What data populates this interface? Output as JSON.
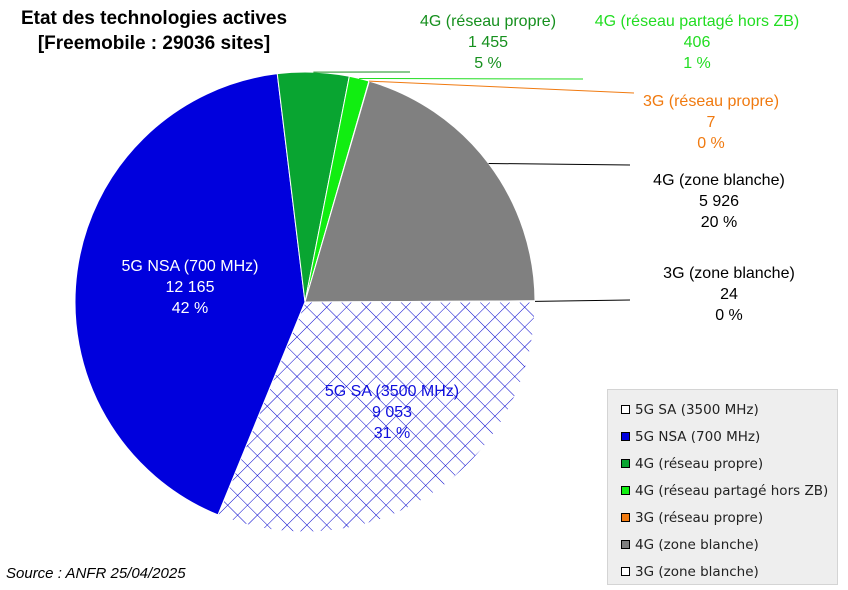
{
  "title_line1": "Etat des technologies actives",
  "title_line2": "[Freemobile : 29036 sites]",
  "source": "Source : ANFR 25/04/2025",
  "colors": {
    "5g_sa": "#ffffff",
    "5g_sa_hatch": "#0000cc",
    "5g_nsa": "#0000dd",
    "4g_propre": "#09a531",
    "4g_partage": "#11ee11",
    "3g_propre": "#f07a10",
    "4g_blanche": "#808080",
    "3g_blanche": "#ffffff"
  },
  "chart_data": {
    "type": "pie",
    "title": "Etat des technologies actives [Freemobile : 29036 sites]",
    "slices": [
      {
        "label": "5G SA (3500 MHz)",
        "value": 9053,
        "value_text": "9 053",
        "percent_text": "31 %",
        "color": "#ffffff",
        "hatch": true
      },
      {
        "label": "5G NSA (700 MHz)",
        "value": 12165,
        "value_text": "12 165",
        "percent_text": "42 %",
        "color": "#0000dd"
      },
      {
        "label": "4G (réseau propre)",
        "value": 1455,
        "value_text": "1 455",
        "percent_text": "5 %",
        "color": "#09a531"
      },
      {
        "label": "4G (réseau partagé hors ZB)",
        "value": 406,
        "value_text": "406",
        "percent_text": "1 %",
        "color": "#11ee11"
      },
      {
        "label": "3G (réseau propre)",
        "value": 7,
        "value_text": "7",
        "percent_text": "0 %",
        "color": "#f07a10"
      },
      {
        "label": "4G (zone blanche)",
        "value": 5926,
        "value_text": "5 926",
        "percent_text": "20 %",
        "color": "#808080"
      },
      {
        "label": "3G (zone blanche)",
        "value": 24,
        "value_text": "24",
        "percent_text": "0 %",
        "color": "#ffffff"
      }
    ],
    "legend_placement": "bottom-right"
  }
}
